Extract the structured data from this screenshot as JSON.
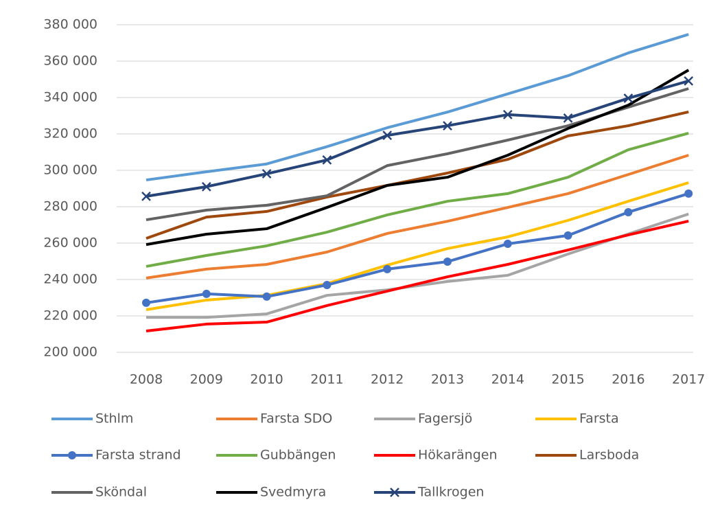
{
  "chart_data": {
    "type": "line",
    "categories": [
      "2008",
      "2009",
      "2010",
      "2011",
      "2012",
      "2013",
      "2014",
      "2015",
      "2016",
      "2017"
    ],
    "ylim": [
      200000,
      380000
    ],
    "yticks": [
      {
        "value": 200000,
        "label": "200 000"
      },
      {
        "value": 220000,
        "label": "220 000"
      },
      {
        "value": 240000,
        "label": "240 000"
      },
      {
        "value": 260000,
        "label": "260 000"
      },
      {
        "value": 280000,
        "label": "280 000"
      },
      {
        "value": 300000,
        "label": "300 000"
      },
      {
        "value": 320000,
        "label": "320 000"
      },
      {
        "value": 340000,
        "label": "340 000"
      },
      {
        "value": 360000,
        "label": "360 000"
      },
      {
        "value": 380000,
        "label": "380 000"
      }
    ],
    "grid": true,
    "legend": "bottom",
    "series": [
      {
        "name": "Sthlm",
        "color": "#5b9bd5",
        "values": [
          294700,
          299200,
          303500,
          313000,
          323400,
          332000,
          342000,
          352000,
          364500,
          374700
        ]
      },
      {
        "name": "Farsta SDO",
        "color": "#ed7d31",
        "values": [
          240800,
          245700,
          248300,
          255100,
          265300,
          272000,
          279600,
          287200,
          297700,
          308300
        ]
      },
      {
        "name": "Fagersjö",
        "color": "#a5a5a5",
        "values": [
          219200,
          219200,
          221100,
          231300,
          234300,
          238900,
          242300,
          254000,
          265000,
          276000
        ]
      },
      {
        "name": "Farsta",
        "color": "#ffc000",
        "values": [
          223400,
          228700,
          231300,
          237700,
          247900,
          257000,
          263400,
          272500,
          283000,
          293200
        ]
      },
      {
        "name": "Farsta strand",
        "color": "#4472c4",
        "marker": "circle",
        "values": [
          227200,
          232100,
          230600,
          237000,
          245700,
          249800,
          259600,
          264200,
          277000,
          287200
        ]
      },
      {
        "name": "Gubbängen",
        "color": "#70ad47",
        "values": [
          247200,
          253200,
          258500,
          266000,
          275500,
          283000,
          287200,
          296200,
          311300,
          320400
        ]
      },
      {
        "name": "Hökarängen",
        "color": "#ff0000",
        "values": [
          211700,
          215500,
          216600,
          225700,
          233600,
          241500,
          248300,
          256200,
          264500,
          272100
        ]
      },
      {
        "name": "Larsboda",
        "color": "#9e480e",
        "values": [
          262600,
          274300,
          277400,
          285300,
          291700,
          298500,
          306000,
          318900,
          324500,
          332100
        ]
      },
      {
        "name": "Sköndal",
        "color": "#636363",
        "values": [
          272800,
          278100,
          280800,
          286000,
          302600,
          309100,
          316600,
          324500,
          334700,
          344900
        ]
      },
      {
        "name": "Svedmyra",
        "color": "#000000",
        "values": [
          259200,
          264900,
          267900,
          279600,
          291700,
          296200,
          308300,
          323000,
          335800,
          355100
        ]
      },
      {
        "name": "Tallkrogen",
        "color": "#264478",
        "marker": "x",
        "values": [
          285700,
          291000,
          298100,
          305700,
          319200,
          324500,
          330600,
          328700,
          339600,
          349100
        ]
      }
    ]
  }
}
